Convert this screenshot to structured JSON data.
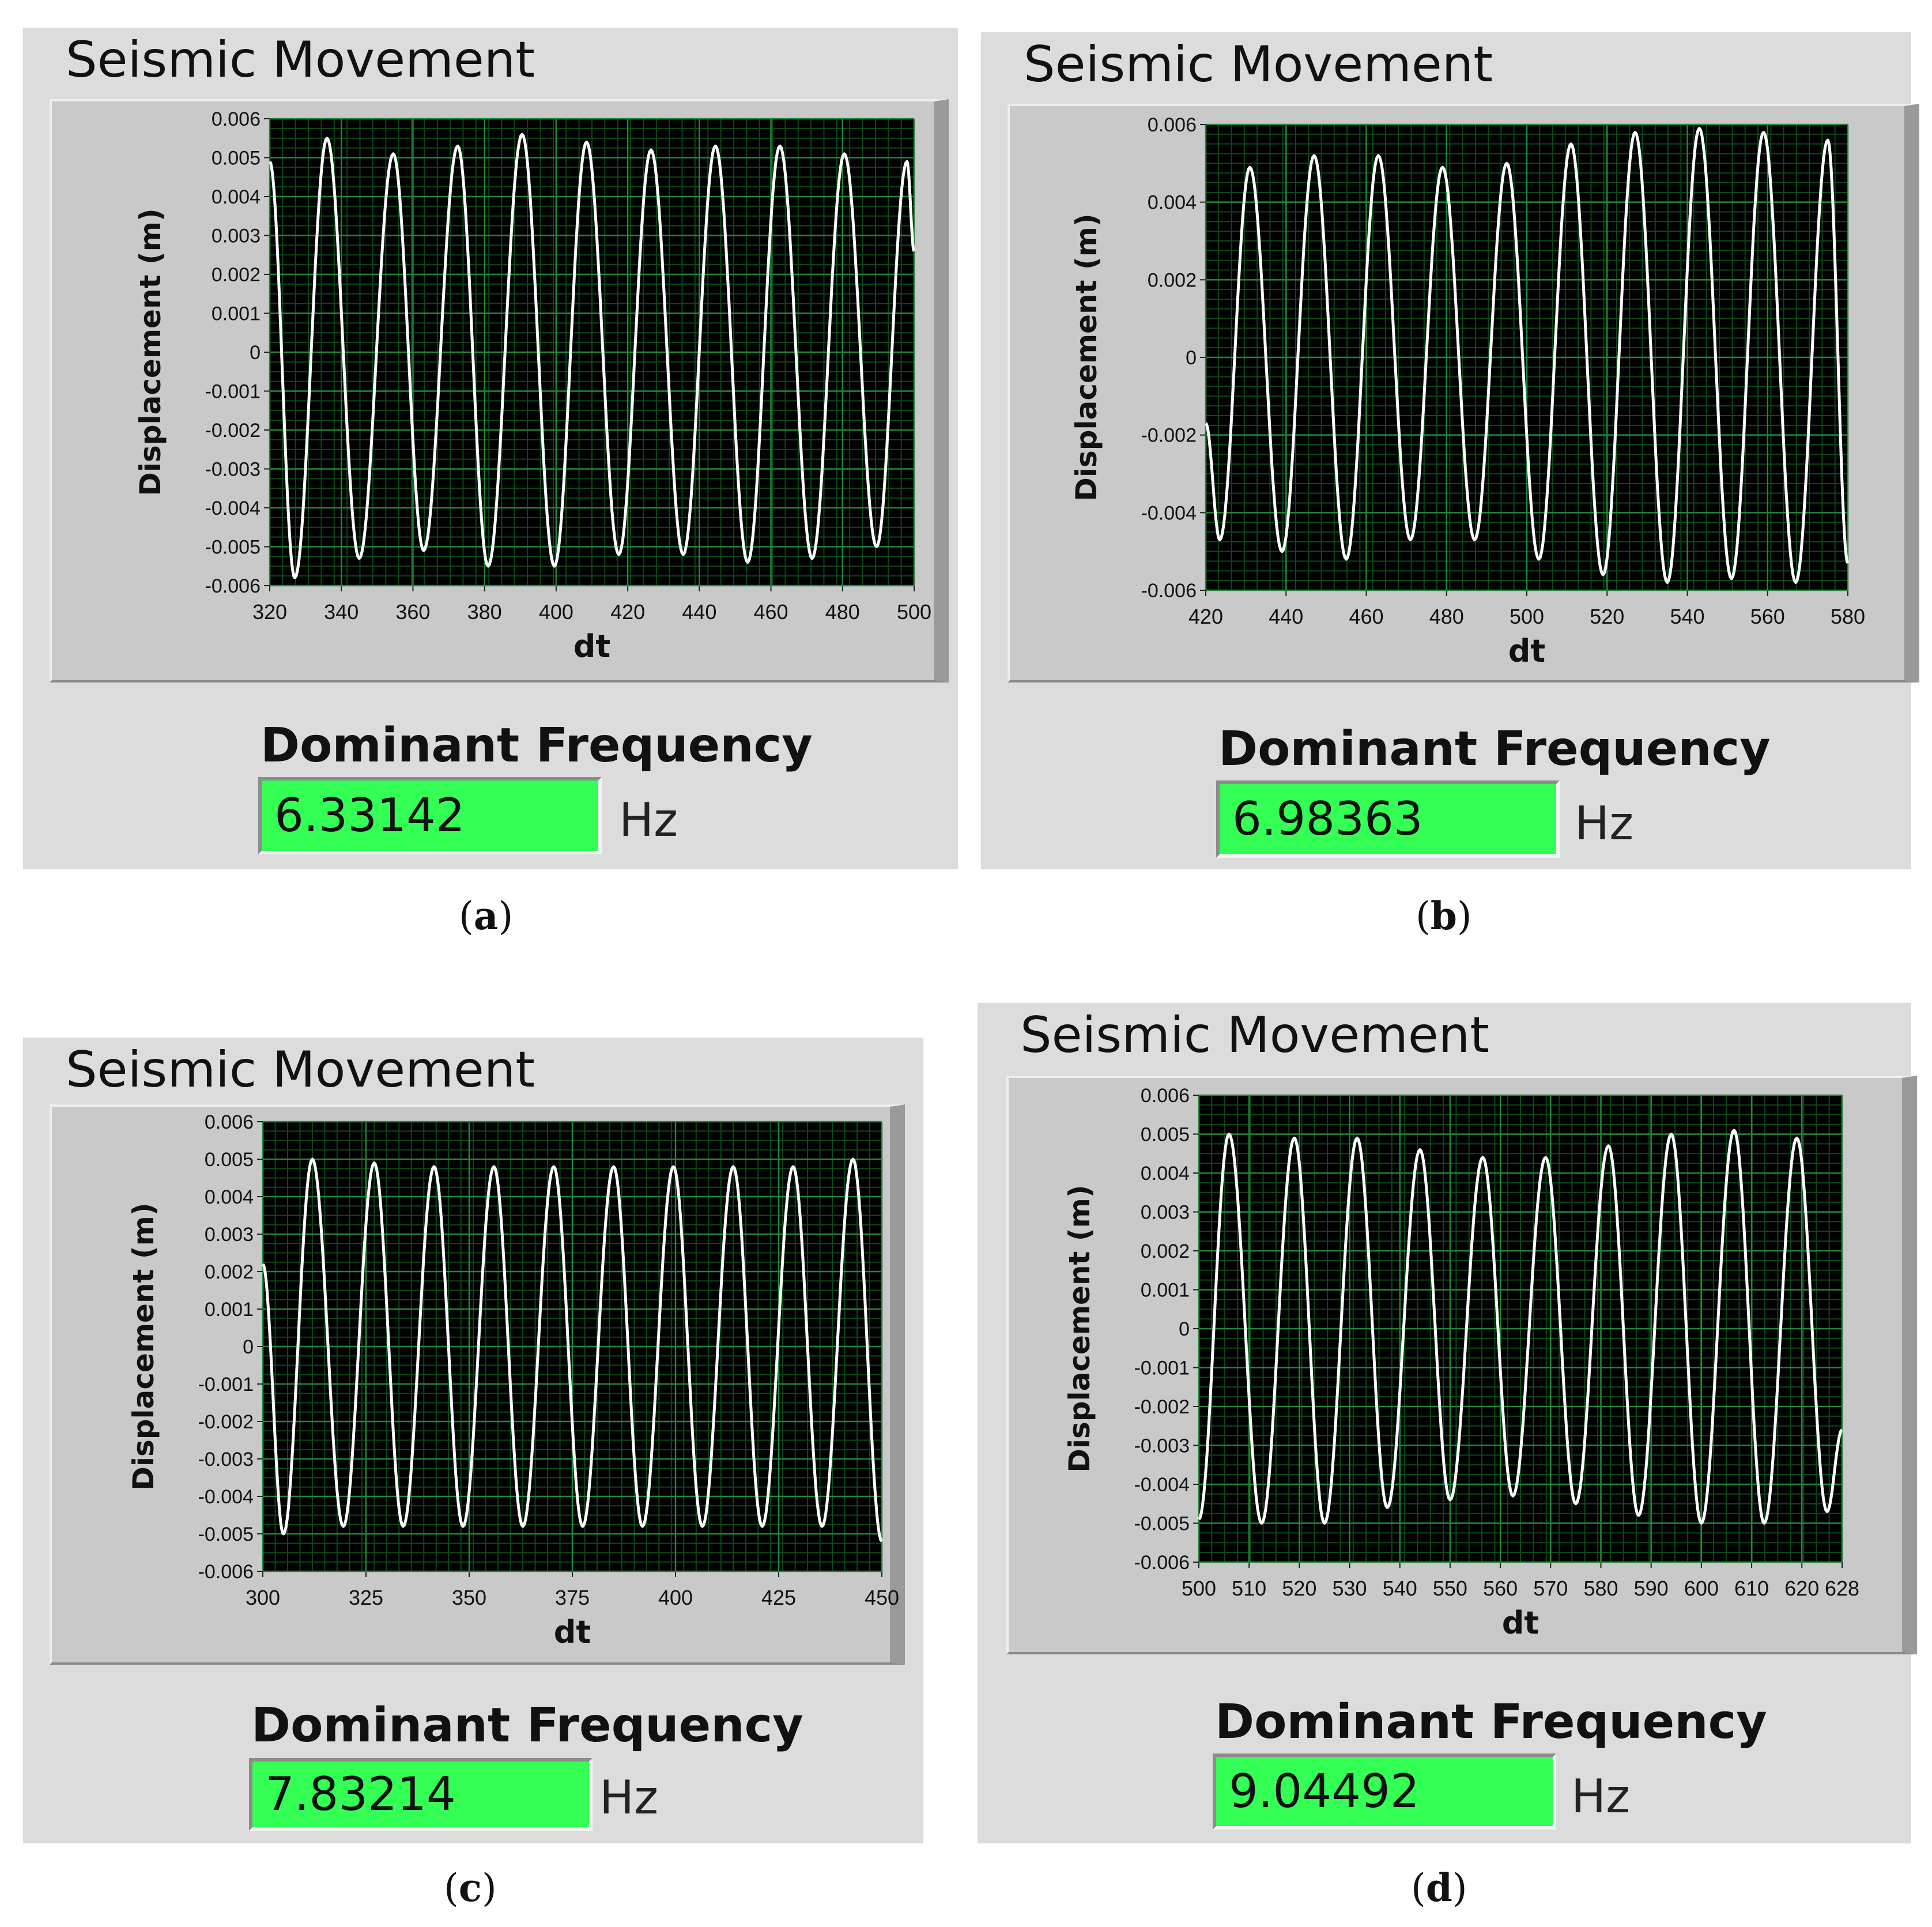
{
  "panels": [
    {
      "id": "a",
      "title": "Seismic Movement",
      "frequency_label": "Dominant Frequency",
      "frequency_value": "6.33142",
      "frequency_unit": "Hz",
      "caption_letter": "a",
      "chart_data": {
        "type": "line",
        "xlabel": "dt",
        "ylabel": "Displacement (m)",
        "xlim": [
          320,
          500
        ],
        "ylim": [
          -0.006,
          0.006
        ],
        "xticks": [
          "320",
          "340",
          "360",
          "380",
          "400",
          "420",
          "440",
          "460",
          "480",
          "500"
        ],
        "yticks": [
          "0.006",
          "0.005",
          "0.004",
          "0.003",
          "0.002",
          "0.001",
          "0",
          "-0.001",
          "-0.002",
          "-0.003",
          "-0.004",
          "-0.005",
          "-0.006"
        ],
        "grid": true,
        "series": [
          {
            "color": "#ffffff",
            "start_value": 0.0049,
            "peaks": [
              [
                336.0,
                0.0055
              ],
              [
                354.5,
                0.0051
              ],
              [
                372.5,
                0.0053
              ],
              [
                390.5,
                0.0056
              ],
              [
                408.5,
                0.0054
              ],
              [
                426.5,
                0.0052
              ],
              [
                444.5,
                0.0053
              ],
              [
                462.5,
                0.0053
              ],
              [
                480.5,
                0.0051
              ],
              [
                498.0,
                0.0049
              ]
            ],
            "troughs": [
              [
                327.0,
                -0.0058
              ],
              [
                345.0,
                -0.0053
              ],
              [
                363.0,
                -0.0051
              ],
              [
                381.0,
                -0.0055
              ],
              [
                399.5,
                -0.0055
              ],
              [
                417.5,
                -0.0052
              ],
              [
                435.5,
                -0.0052
              ],
              [
                453.5,
                -0.0054
              ],
              [
                471.5,
                -0.0053
              ],
              [
                489.5,
                -0.005
              ]
            ],
            "end_value": 0.0026
          }
        ]
      }
    },
    {
      "id": "b",
      "title": "Seismic Movement",
      "frequency_label": "Dominant Frequency",
      "frequency_value": "6.98363",
      "frequency_unit": "Hz",
      "caption_letter": "b",
      "chart_data": {
        "type": "line",
        "xlabel": "dt",
        "ylabel": "Displacement (m)",
        "xlim": [
          420,
          580
        ],
        "ylim": [
          -0.006,
          0.006
        ],
        "xticks": [
          "420",
          "440",
          "460",
          "480",
          "500",
          "520",
          "540",
          "560",
          "580"
        ],
        "yticks": [
          "0.006",
          "0.004",
          "0.002",
          "0",
          "-0.002",
          "-0.004",
          "-0.006"
        ],
        "grid": true,
        "series": [
          {
            "color": "#ffffff",
            "start_value": -0.0017,
            "peaks": [
              [
                431.0,
                0.0049
              ],
              [
                447.0,
                0.0052
              ],
              [
                463.0,
                0.0052
              ],
              [
                479.0,
                0.0049
              ],
              [
                495.0,
                0.005
              ],
              [
                511.0,
                0.0055
              ],
              [
                527.0,
                0.0058
              ],
              [
                543.0,
                0.0059
              ],
              [
                559.0,
                0.0058
              ],
              [
                575.0,
                0.0056
              ]
            ],
            "troughs": [
              [
                423.5,
                -0.0047
              ],
              [
                439.0,
                -0.005
              ],
              [
                455.0,
                -0.0052
              ],
              [
                471.0,
                -0.0047
              ],
              [
                487.0,
                -0.0047
              ],
              [
                503.0,
                -0.0052
              ],
              [
                519.0,
                -0.0056
              ],
              [
                535.0,
                -0.0058
              ],
              [
                551.0,
                -0.0057
              ],
              [
                567.0,
                -0.0058
              ]
            ],
            "end_value": -0.0053
          }
        ]
      }
    },
    {
      "id": "c",
      "title": "Seismic Movement",
      "frequency_label": "Dominant Frequency",
      "frequency_value": "7.83214",
      "frequency_unit": "Hz",
      "caption_letter": "c",
      "chart_data": {
        "type": "line",
        "xlabel": "dt",
        "ylabel": "Displacement (m)",
        "xlim": [
          300,
          450
        ],
        "ylim": [
          -0.006,
          0.006
        ],
        "xticks": [
          "300",
          "325",
          "350",
          "375",
          "400",
          "425",
          "450"
        ],
        "yticks": [
          "0.006",
          "0.005",
          "0.004",
          "0.003",
          "0.002",
          "0.001",
          "0",
          "-0.001",
          "-0.002",
          "-0.003",
          "-0.004",
          "-0.005",
          "-0.006"
        ],
        "grid": true,
        "series": [
          {
            "color": "#ffffff",
            "start_value": 0.0022,
            "peaks": [
              [
                312.0,
                0.005
              ],
              [
                327.0,
                0.0049
              ],
              [
                341.5,
                0.0048
              ],
              [
                356.0,
                0.0048
              ],
              [
                370.5,
                0.0048
              ],
              [
                385.0,
                0.0048
              ],
              [
                399.5,
                0.0048
              ],
              [
                414.0,
                0.0048
              ],
              [
                428.5,
                0.0048
              ],
              [
                443.0,
                0.005
              ]
            ],
            "troughs": [
              [
                305.0,
                -0.005
              ],
              [
                319.5,
                -0.0048
              ],
              [
                334.0,
                -0.0048
              ],
              [
                348.5,
                -0.0048
              ],
              [
                363.0,
                -0.0048
              ],
              [
                377.5,
                -0.0048
              ],
              [
                392.0,
                -0.0048
              ],
              [
                406.5,
                -0.0048
              ],
              [
                421.0,
                -0.0048
              ],
              [
                435.5,
                -0.0048
              ]
            ],
            "end_value": -0.0052
          }
        ]
      }
    },
    {
      "id": "d",
      "title": "Seismic Movement",
      "frequency_label": "Dominant Frequency",
      "frequency_value": "9.04492",
      "frequency_unit": "Hz",
      "caption_letter": "d",
      "chart_data": {
        "type": "line",
        "xlabel": "dt",
        "ylabel": "Displacement (m)",
        "xlim": [
          500,
          628
        ],
        "ylim": [
          -0.006,
          0.006
        ],
        "xticks": [
          "500",
          "510",
          "520",
          "530",
          "540",
          "550",
          "560",
          "570",
          "580",
          "590",
          "600",
          "610",
          "620",
          "628"
        ],
        "yticks": [
          "0.006",
          "0.005",
          "0.004",
          "0.003",
          "0.002",
          "0.001",
          "0",
          "-0.001",
          "-0.002",
          "-0.003",
          "-0.004",
          "-0.005",
          "-0.006"
        ],
        "grid": true,
        "series": [
          {
            "color": "#ffffff",
            "start_value": -0.0049,
            "peaks": [
              [
                506.0,
                0.005
              ],
              [
                519.0,
                0.0049
              ],
              [
                531.5,
                0.0049
              ],
              [
                544.0,
                0.0046
              ],
              [
                556.5,
                0.0044
              ],
              [
                569.0,
                0.0044
              ],
              [
                581.5,
                0.0047
              ],
              [
                594.0,
                0.005
              ],
              [
                606.5,
                0.0051
              ],
              [
                619.0,
                0.0049
              ]
            ],
            "troughs": [
              [
                512.5,
                -0.005
              ],
              [
                525.0,
                -0.005
              ],
              [
                537.5,
                -0.0046
              ],
              [
                550.0,
                -0.0044
              ],
              [
                562.5,
                -0.0043
              ],
              [
                575.0,
                -0.0045
              ],
              [
                587.5,
                -0.0048
              ],
              [
                600.0,
                -0.005
              ],
              [
                612.5,
                -0.005
              ],
              [
                625.0,
                -0.0047
              ]
            ],
            "end_value": -0.0026
          }
        ]
      }
    }
  ]
}
